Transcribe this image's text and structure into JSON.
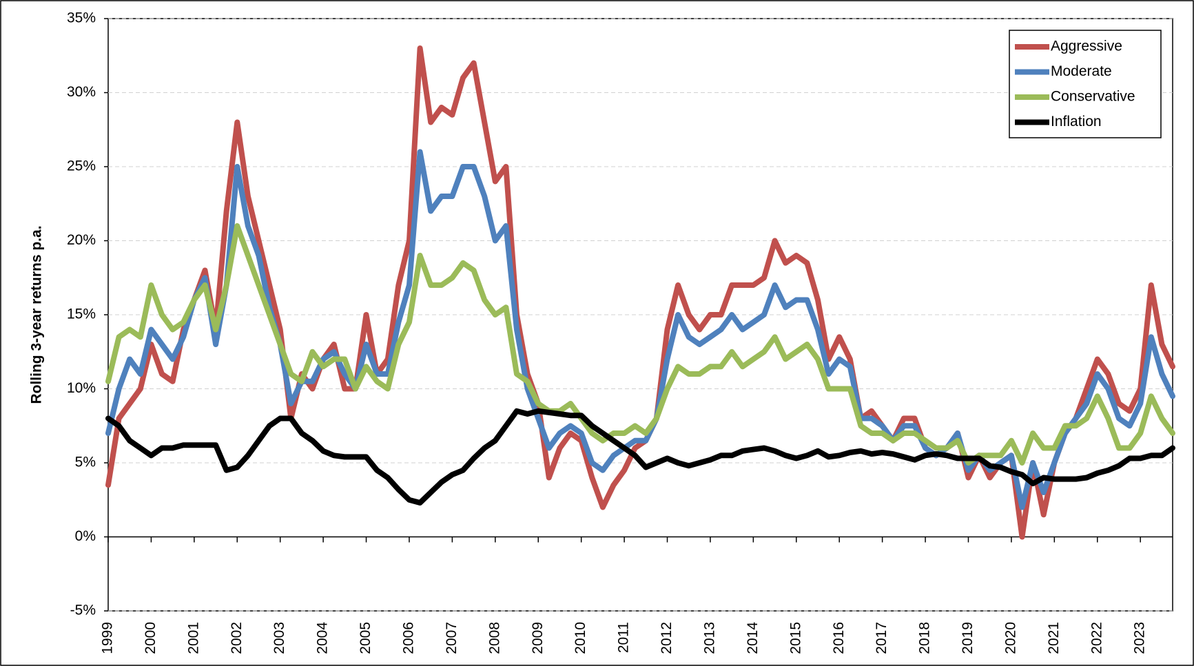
{
  "chart_data": {
    "type": "line",
    "y_label": "Rolling 3-year returns p.a.",
    "x": [
      1999,
      1999.25,
      1999.5,
      1999.75,
      2000,
      2000.25,
      2000.5,
      2000.75,
      2001,
      2001.25,
      2001.5,
      2001.75,
      2002,
      2002.25,
      2002.5,
      2002.75,
      2003,
      2003.25,
      2003.5,
      2003.75,
      2004,
      2004.25,
      2004.5,
      2004.75,
      2005,
      2005.25,
      2005.5,
      2005.75,
      2006,
      2006.25,
      2006.5,
      2006.75,
      2007,
      2007.25,
      2007.5,
      2007.75,
      2008,
      2008.25,
      2008.5,
      2008.75,
      2009,
      2009.25,
      2009.5,
      2009.75,
      2010,
      2010.25,
      2010.5,
      2010.75,
      2011,
      2011.25,
      2011.5,
      2011.75,
      2012,
      2012.25,
      2012.5,
      2012.75,
      2013,
      2013.25,
      2013.5,
      2013.75,
      2014,
      2014.25,
      2014.5,
      2014.75,
      2015,
      2015.25,
      2015.5,
      2015.75,
      2016,
      2016.25,
      2016.5,
      2016.75,
      2017,
      2017.25,
      2017.5,
      2017.75,
      2018,
      2018.25,
      2018.5,
      2018.75,
      2019,
      2019.25,
      2019.5,
      2019.75,
      2020,
      2020.25,
      2020.5,
      2020.75,
      2021,
      2021.25,
      2021.5,
      2021.75,
      2022,
      2022.25,
      2022.5,
      2022.75,
      2023,
      2023.25,
      2023.5,
      2023.75
    ],
    "series": [
      {
        "name": "Aggressive",
        "color": "#c0504d",
        "values": [
          3.5,
          8,
          9,
          10,
          13,
          11,
          10.5,
          14,
          16,
          18,
          14,
          22,
          28,
          23,
          20,
          17,
          14,
          8,
          11,
          10,
          12,
          13,
          10,
          10,
          15,
          11,
          12,
          17,
          20,
          33,
          28,
          29,
          28.5,
          31,
          32,
          28,
          24,
          25,
          15,
          11,
          9,
          4,
          6,
          7,
          6.5,
          4,
          2,
          3.5,
          4.5,
          6,
          6.5,
          8,
          14,
          17,
          15,
          14,
          15,
          15,
          17,
          17,
          17,
          17.5,
          20,
          18.5,
          19,
          18.5,
          16,
          12,
          13.5,
          12,
          8,
          8.5,
          7.5,
          6.5,
          8,
          8,
          6,
          5.5,
          6,
          7,
          4,
          5.5,
          4,
          5,
          5.5,
          0,
          5,
          1.5,
          5,
          7,
          8,
          10,
          12,
          11,
          9,
          8.5,
          10,
          17,
          13,
          11.5
        ]
      },
      {
        "name": "Moderate",
        "color": "#4f81bd",
        "values": [
          7,
          10,
          12,
          11,
          14,
          13,
          12,
          13.5,
          16,
          17.5,
          13,
          17,
          25,
          21,
          19,
          15.5,
          13,
          9,
          10.5,
          10.5,
          12,
          12.5,
          11,
          10,
          13,
          11,
          11,
          14.5,
          17,
          26,
          22,
          23,
          23,
          25,
          25,
          23,
          20,
          21,
          14,
          10,
          8,
          6,
          7,
          7.5,
          7,
          5,
          4.5,
          5.5,
          6,
          6.5,
          6.5,
          8,
          12,
          15,
          13.5,
          13,
          13.5,
          14,
          15,
          14,
          14.5,
          15,
          17,
          15.5,
          16,
          16,
          14,
          11,
          12,
          11.5,
          8,
          8,
          7.5,
          6.5,
          7.5,
          7.5,
          6,
          5.5,
          6,
          7,
          4.5,
          5.5,
          4.5,
          5,
          5.5,
          2,
          5,
          3,
          5,
          7,
          8,
          9,
          11,
          10,
          8,
          7.5,
          9,
          13.5,
          11,
          9.5
        ]
      },
      {
        "name": "Conservative",
        "color": "#9bbb59",
        "values": [
          10.5,
          13.5,
          14,
          13.5,
          17,
          15,
          14,
          14.5,
          16,
          17,
          14,
          17,
          21,
          19,
          17,
          15,
          13,
          11,
          10.5,
          12.5,
          11.5,
          12,
          12,
          10,
          11.5,
          10.5,
          10,
          13,
          14.5,
          19,
          17,
          17,
          17.5,
          18.5,
          18,
          16,
          15,
          15.5,
          11,
          10.5,
          9,
          8.5,
          8.5,
          9,
          8,
          7,
          6.5,
          7,
          7,
          7.5,
          7,
          8,
          10,
          11.5,
          11,
          11,
          11.5,
          11.5,
          12.5,
          11.5,
          12,
          12.5,
          13.5,
          12,
          12.5,
          13,
          12,
          10,
          10,
          10,
          7.5,
          7,
          7,
          6.5,
          7,
          7,
          6.5,
          6,
          6,
          6.5,
          5,
          5.5,
          5.5,
          5.5,
          6.5,
          5,
          7,
          6,
          6,
          7.5,
          7.5,
          8,
          9.5,
          8,
          6,
          6,
          7,
          9.5,
          8,
          7
        ]
      },
      {
        "name": "Inflation",
        "color": "#000000",
        "values": [
          8,
          7.5,
          6.5,
          6,
          5.5,
          6,
          6,
          6.2,
          6.2,
          6.2,
          6.2,
          4.5,
          4.7,
          5.5,
          6.5,
          7.5,
          8,
          8,
          7,
          6.5,
          5.8,
          5.5,
          5.4,
          5.4,
          5.4,
          4.5,
          4,
          3.2,
          2.5,
          2.3,
          3,
          3.7,
          4.2,
          4.5,
          5.3,
          6,
          6.5,
          7.5,
          8.5,
          8.3,
          8.5,
          8.4,
          8.3,
          8.2,
          8.2,
          7.5,
          7,
          6.5,
          6,
          5.5,
          4.7,
          5,
          5.3,
          5,
          4.8,
          5,
          5.2,
          5.5,
          5.5,
          5.8,
          5.9,
          6,
          5.8,
          5.5,
          5.3,
          5.5,
          5.8,
          5.4,
          5.5,
          5.7,
          5.8,
          5.6,
          5.7,
          5.6,
          5.4,
          5.2,
          5.5,
          5.6,
          5.5,
          5.3,
          5.3,
          5.3,
          4.8,
          4.7,
          4.4,
          4.2,
          3.6,
          4,
          3.9,
          3.9,
          3.9,
          4,
          4.3,
          4.5,
          4.8,
          5.3,
          5.3,
          5.5,
          5.5,
          6
        ]
      }
    ],
    "xlim": [
      1999,
      2023.75
    ],
    "xticks": [
      1999,
      2000,
      2001,
      2002,
      2003,
      2004,
      2005,
      2006,
      2007,
      2008,
      2009,
      2010,
      2011,
      2012,
      2013,
      2014,
      2015,
      2016,
      2017,
      2018,
      2019,
      2020,
      2021,
      2022,
      2023
    ],
    "ylim": [
      -5,
      35
    ],
    "yticks": [
      {
        "value": -5,
        "label": "-5%"
      },
      {
        "value": 0,
        "label": "0%"
      },
      {
        "value": 5,
        "label": "5%"
      },
      {
        "value": 10,
        "label": "10%"
      },
      {
        "value": 15,
        "label": "15%"
      },
      {
        "value": 20,
        "label": "20%"
      },
      {
        "value": 25,
        "label": "25%"
      },
      {
        "value": 30,
        "label": "30%"
      },
      {
        "value": 35,
        "label": "35%"
      }
    ],
    "grid": true,
    "legend": "upper right"
  }
}
